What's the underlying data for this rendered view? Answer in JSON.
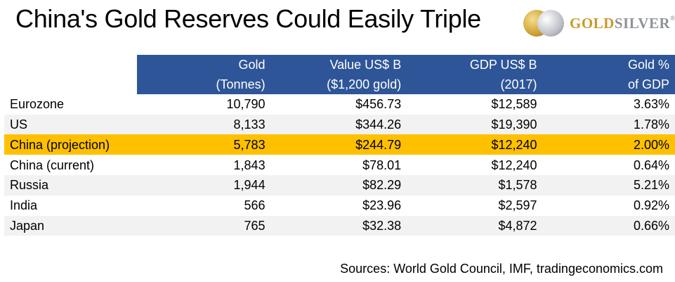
{
  "title": "China's Gold Reserves Could Easily Triple",
  "logo": {
    "gold": "GOLD",
    "silver": "SILVER",
    "tm": "®"
  },
  "headers": [
    [
      "",
      "Gold",
      "Value US$ B",
      "GDP US$ B",
      "Gold %"
    ],
    [
      "",
      "(Tonnes)",
      "($1,200 gold)",
      "(2017)",
      "of GDP"
    ]
  ],
  "rows": [
    [
      "Eurozone",
      "10,790",
      "$456.73",
      "$12,589",
      "3.63%"
    ],
    [
      "US",
      "8,133",
      "$344.26",
      "$19,390",
      "1.78%"
    ],
    [
      "China (projection)",
      "5,783",
      "$244.79",
      "$12,240",
      "2.00%"
    ],
    [
      "China (current)",
      "1,843",
      "$78.01",
      "$12,240",
      "0.64%"
    ],
    [
      "Russia",
      "1,944",
      "$82.29",
      "$1,578",
      "5.21%"
    ],
    [
      "India",
      "566",
      "$23.96",
      "$2,597",
      "0.92%"
    ],
    [
      "Japan",
      "765",
      "$32.38",
      "$4,872",
      "0.66%"
    ]
  ],
  "colors": {
    "header_bg": "#2e5597",
    "highlight": "#ffc000",
    "alt_row": "#f2f2f2"
  },
  "sources": "Sources: World Gold Council, IMF, tradingeconomics.com"
}
